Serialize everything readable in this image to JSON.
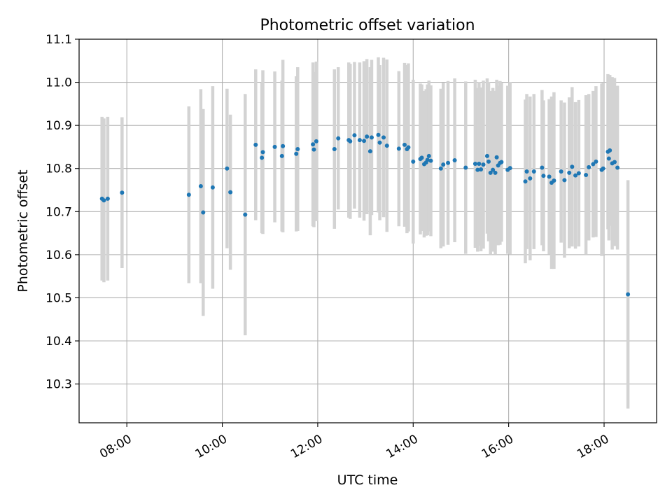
{
  "chart_data": {
    "type": "scatter",
    "title": "Photometric offset variation",
    "xlabel": "UTC time",
    "ylabel": "Photometric offset",
    "x_unit": "hours UTC",
    "xlim": [
      7.0,
      19.1
    ],
    "ylim": [
      10.21,
      11.1
    ],
    "xticks": [
      8,
      10,
      12,
      14,
      16,
      18
    ],
    "xtick_labels": [
      "08:00",
      "10:00",
      "12:00",
      "14:00",
      "16:00",
      "18:00"
    ],
    "yticks": [
      10.3,
      10.4,
      10.5,
      10.6,
      10.7,
      10.8,
      10.9,
      11.0,
      11.1
    ],
    "ytick_labels": [
      "10.3",
      "10.4",
      "10.5",
      "10.6",
      "10.7",
      "10.8",
      "10.9",
      "11.0",
      "11.1"
    ],
    "grid": true,
    "legend": "none",
    "colors": {
      "point": "#1f77b4",
      "errorbar": "#d3d3d3",
      "grid": "#b0b0b0"
    },
    "series": [
      {
        "points": [
          [
            7.48,
            10.73,
            0.19
          ],
          [
            7.52,
            10.726,
            0.19
          ],
          [
            7.6,
            10.73,
            0.19
          ],
          [
            7.9,
            10.744,
            0.175
          ],
          [
            9.3,
            10.739,
            0.205
          ],
          [
            9.55,
            10.759,
            0.225
          ],
          [
            9.6,
            10.698,
            0.24
          ],
          [
            9.8,
            10.756,
            0.235
          ],
          [
            10.1,
            10.8,
            0.185
          ],
          [
            10.17,
            10.745,
            0.18
          ],
          [
            10.48,
            10.693,
            0.28
          ],
          [
            10.7,
            10.855,
            0.175
          ],
          [
            10.83,
            10.825,
            0.175
          ],
          [
            10.85,
            10.838,
            0.19
          ],
          [
            11.1,
            10.85,
            0.175
          ],
          [
            11.25,
            10.829,
            0.175
          ],
          [
            11.27,
            10.852,
            0.2
          ],
          [
            11.55,
            10.834,
            0.18
          ],
          [
            11.58,
            10.845,
            0.19
          ],
          [
            11.9,
            10.856,
            0.19
          ],
          [
            11.92,
            10.844,
            0.18
          ],
          [
            11.97,
            10.863,
            0.185
          ],
          [
            12.35,
            10.845,
            0.185
          ],
          [
            12.43,
            10.87,
            0.165
          ],
          [
            12.65,
            10.866,
            0.18
          ],
          [
            12.68,
            10.863,
            0.18
          ],
          [
            12.77,
            10.877,
            0.17
          ],
          [
            12.88,
            10.866,
            0.18
          ],
          [
            12.97,
            10.864,
            0.185
          ],
          [
            13.03,
            10.874,
            0.18
          ],
          [
            13.1,
            10.84,
            0.195
          ],
          [
            13.13,
            10.872,
            0.18
          ],
          [
            13.27,
            10.878,
            0.18
          ],
          [
            13.3,
            10.86,
            0.18
          ],
          [
            13.38,
            10.872,
            0.185
          ],
          [
            13.45,
            10.853,
            0.2
          ],
          [
            13.7,
            10.846,
            0.18
          ],
          [
            13.82,
            10.855,
            0.19
          ],
          [
            13.87,
            10.845,
            0.195
          ],
          [
            13.9,
            10.849,
            0.195
          ],
          [
            14.0,
            10.816,
            0.19
          ],
          [
            14.15,
            10.822,
            0.175
          ],
          [
            14.18,
            10.825,
            0.17
          ],
          [
            14.23,
            10.81,
            0.17
          ],
          [
            14.27,
            10.814,
            0.17
          ],
          [
            14.3,
            10.82,
            0.175
          ],
          [
            14.33,
            10.829,
            0.175
          ],
          [
            14.37,
            10.818,
            0.175
          ],
          [
            14.58,
            10.8,
            0.185
          ],
          [
            14.63,
            10.809,
            0.19
          ],
          [
            14.73,
            10.813,
            0.19
          ],
          [
            14.87,
            10.819,
            0.19
          ],
          [
            15.1,
            10.802,
            0.2
          ],
          [
            15.3,
            10.811,
            0.195
          ],
          [
            15.35,
            10.797,
            0.19
          ],
          [
            15.38,
            10.811,
            0.19
          ],
          [
            15.42,
            10.798,
            0.19
          ],
          [
            15.47,
            10.809,
            0.195
          ],
          [
            15.55,
            10.829,
            0.18
          ],
          [
            15.58,
            10.816,
            0.185
          ],
          [
            15.62,
            10.79,
            0.19
          ],
          [
            15.67,
            10.797,
            0.19
          ],
          [
            15.72,
            10.79,
            0.19
          ],
          [
            15.75,
            10.826,
            0.18
          ],
          [
            15.78,
            10.807,
            0.185
          ],
          [
            15.82,
            10.813,
            0.19
          ],
          [
            15.85,
            10.815,
            0.185
          ],
          [
            15.98,
            10.797,
            0.195
          ],
          [
            16.03,
            10.801,
            0.2
          ],
          [
            16.35,
            10.77,
            0.19
          ],
          [
            16.38,
            10.793,
            0.18
          ],
          [
            16.45,
            10.777,
            0.19
          ],
          [
            16.53,
            10.793,
            0.18
          ],
          [
            16.7,
            10.802,
            0.18
          ],
          [
            16.73,
            10.783,
            0.175
          ],
          [
            16.85,
            10.781,
            0.18
          ],
          [
            16.9,
            10.767,
            0.2
          ],
          [
            16.95,
            10.772,
            0.205
          ],
          [
            17.1,
            10.793,
            0.165
          ],
          [
            17.17,
            10.773,
            0.18
          ],
          [
            17.27,
            10.79,
            0.175
          ],
          [
            17.33,
            10.804,
            0.185
          ],
          [
            17.4,
            10.784,
            0.17
          ],
          [
            17.47,
            10.789,
            0.17
          ],
          [
            17.62,
            10.785,
            0.185
          ],
          [
            17.68,
            10.803,
            0.17
          ],
          [
            17.77,
            10.81,
            0.17
          ],
          [
            17.83,
            10.816,
            0.175
          ],
          [
            17.95,
            10.797,
            0.2
          ],
          [
            17.98,
            10.8,
            0.2
          ],
          [
            18.08,
            10.839,
            0.18
          ],
          [
            18.1,
            10.823,
            0.19
          ],
          [
            18.12,
            10.842,
            0.175
          ],
          [
            18.17,
            10.812,
            0.2
          ],
          [
            18.22,
            10.815,
            0.195
          ],
          [
            18.28,
            10.802,
            0.19
          ],
          [
            18.5,
            10.508,
            0.265
          ]
        ]
      }
    ]
  }
}
